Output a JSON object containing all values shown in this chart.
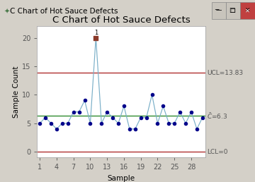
{
  "title": "C Chart of Hot Sauce Defects",
  "xlabel": "Sample",
  "ylabel": "Sample Count",
  "ucl": 13.83,
  "cl": 6.3,
  "lcl": 0,
  "ucl_label": "UCL=13.83",
  "cl_label": "C=6.3",
  "lcl_label": "LCL=0",
  "x": [
    1,
    2,
    3,
    4,
    5,
    6,
    7,
    8,
    9,
    10,
    11,
    12,
    13,
    14,
    15,
    16,
    17,
    18,
    19,
    20,
    21,
    22,
    23,
    24,
    25,
    26,
    27,
    28,
    29,
    30
  ],
  "y": [
    5,
    6,
    5,
    4,
    5,
    5,
    7,
    7,
    9,
    5,
    20,
    5,
    7,
    6,
    5,
    8,
    4,
    4,
    6,
    6,
    10,
    5,
    8,
    5,
    5,
    7,
    5,
    7,
    4,
    6
  ],
  "out_of_control": [
    11
  ],
  "line_color": "#7aafc8",
  "point_color": "#00008b",
  "out_color": "#8b3a2a",
  "ucl_color": "#b03030",
  "cl_color": "#2e8b2e",
  "lcl_color": "#b03030",
  "label_color": "#555555",
  "bg_color": "#ffffff",
  "outer_bg": "#d4d0c8",
  "titlebar_bg": "#b8c4d8",
  "titlebar_text": "C Chart of Hot Sauce Defects",
  "titlebar_textcolor": "#000000",
  "ylim": [
    -1,
    22
  ],
  "yticks": [
    0,
    5,
    10,
    15,
    20
  ],
  "xticks": [
    1,
    4,
    7,
    10,
    13,
    16,
    19,
    22,
    25,
    28
  ],
  "title_fontsize": 9.5,
  "label_fontsize": 7.5,
  "tick_fontsize": 7,
  "annot_fontsize": 6.5,
  "titlebar_fontsize": 7.5
}
